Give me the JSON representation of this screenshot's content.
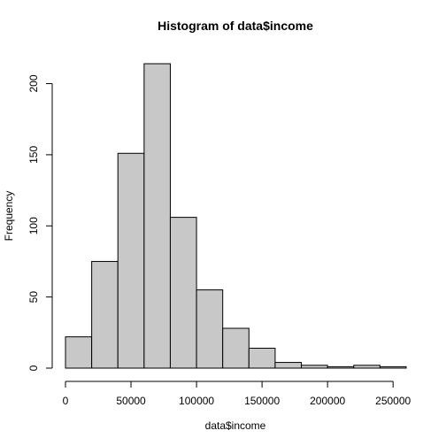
{
  "chart_data": {
    "type": "bar",
    "title": "Histogram of data$income",
    "xlabel": "data$income",
    "ylabel": "Frequency",
    "bin_width": 20000,
    "bins": [
      {
        "x0": 0,
        "x1": 20000,
        "count": 22
      },
      {
        "x0": 20000,
        "x1": 40000,
        "count": 75
      },
      {
        "x0": 40000,
        "x1": 60000,
        "count": 151
      },
      {
        "x0": 60000,
        "x1": 80000,
        "count": 214
      },
      {
        "x0": 80000,
        "x1": 100000,
        "count": 106
      },
      {
        "x0": 100000,
        "x1": 120000,
        "count": 55
      },
      {
        "x0": 120000,
        "x1": 140000,
        "count": 28
      },
      {
        "x0": 140000,
        "x1": 160000,
        "count": 14
      },
      {
        "x0": 160000,
        "x1": 180000,
        "count": 4
      },
      {
        "x0": 180000,
        "x1": 200000,
        "count": 2
      },
      {
        "x0": 200000,
        "x1": 220000,
        "count": 1
      },
      {
        "x0": 220000,
        "x1": 240000,
        "count": 2
      },
      {
        "x0": 240000,
        "x1": 260000,
        "count": 1
      }
    ],
    "xlim": [
      0,
      260000
    ],
    "ylim": [
      0,
      214
    ],
    "x_ticks": [
      0,
      50000,
      100000,
      150000,
      200000,
      250000
    ],
    "x_tick_labels": [
      "0",
      "50000",
      "100000",
      "150000",
      "200000",
      "250000"
    ],
    "y_ticks": [
      0,
      50,
      100,
      150,
      200
    ],
    "y_tick_labels": [
      "0",
      "50",
      "100",
      "150",
      "200"
    ],
    "bar_color": "#c8c8c8",
    "grid": false
  }
}
